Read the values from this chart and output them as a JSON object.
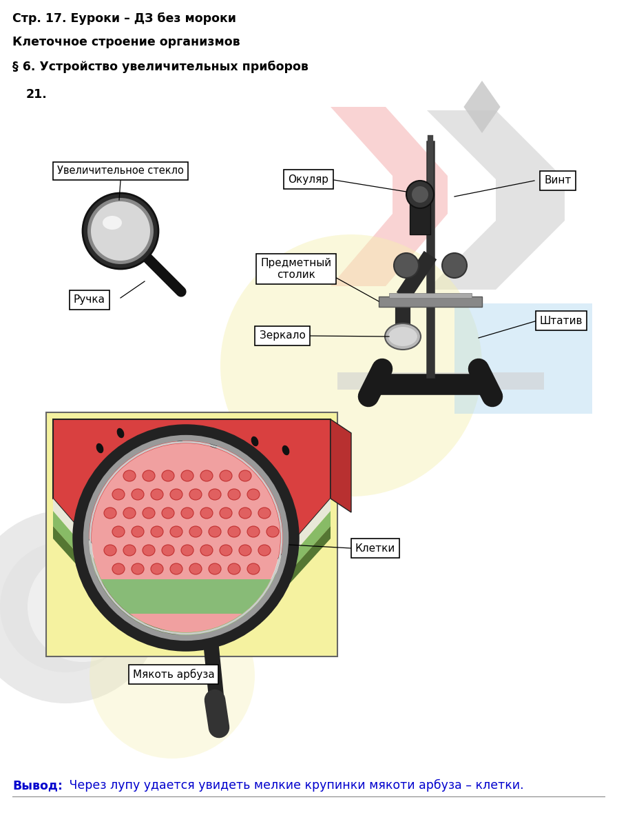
{
  "title1": "Стр. 17. Еуроки – ДЗ без мороки",
  "title2": "Клеточное строение организмов",
  "title3": "§ 6. Устройство увеличительных приборов",
  "number": "21.",
  "conclusion_bold": "Вывод:",
  "conclusion_text": " Через лупу удается увидеть мелкие крупинки мякоти арбуза – клетки.",
  "bg_color": "#ffffff",
  "text_color": "#000000",
  "blue_text_color": "#0000cd",
  "label_magnifier": "Увеличительное стекло",
  "label_handle": "Ручка",
  "label_eyepiece": "Окуляр",
  "label_screw": "Винт",
  "label_stage": "Предметный\nстолик",
  "label_mirror": "Зеркало",
  "label_tripod": "Штатив",
  "label_cells": "Клетки",
  "label_watermelon": "Мякоть арбуза"
}
